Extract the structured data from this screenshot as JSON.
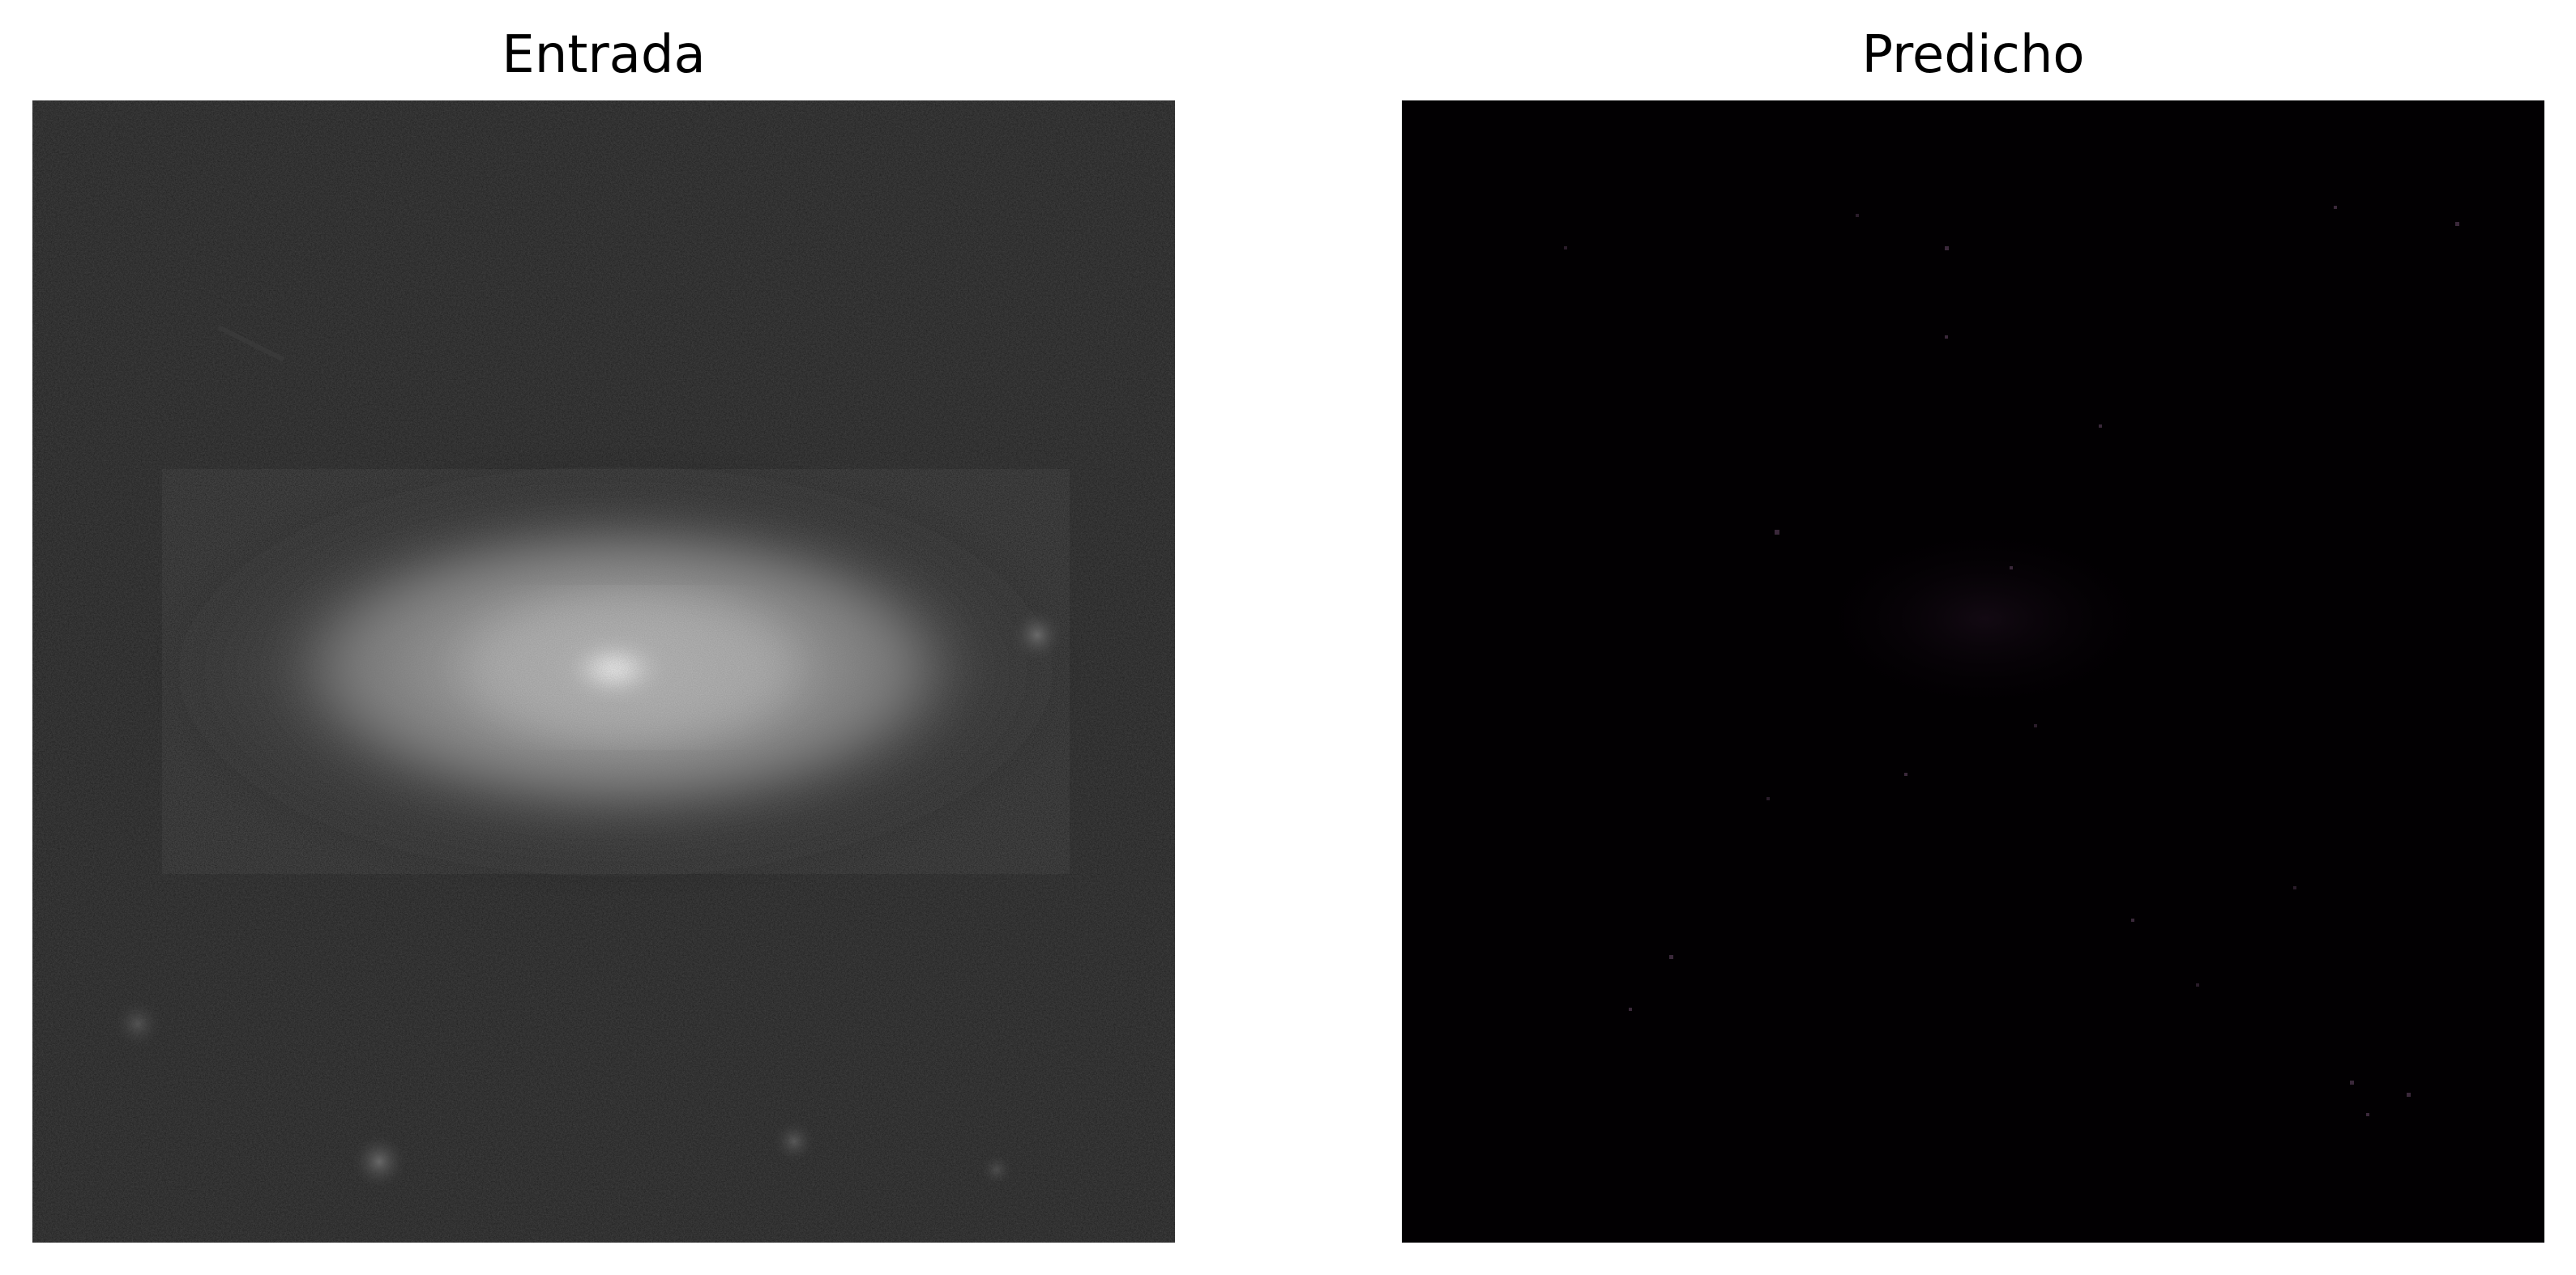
{
  "figure": {
    "panels": [
      {
        "title": "Entrada",
        "content": "grayscale-galaxy-image"
      },
      {
        "title": "Predicho",
        "content": "near-black-predicted-image"
      }
    ],
    "colors": {
      "background": "#ffffff",
      "input_sky": "#151515",
      "predicted_background": "#020002"
    }
  }
}
